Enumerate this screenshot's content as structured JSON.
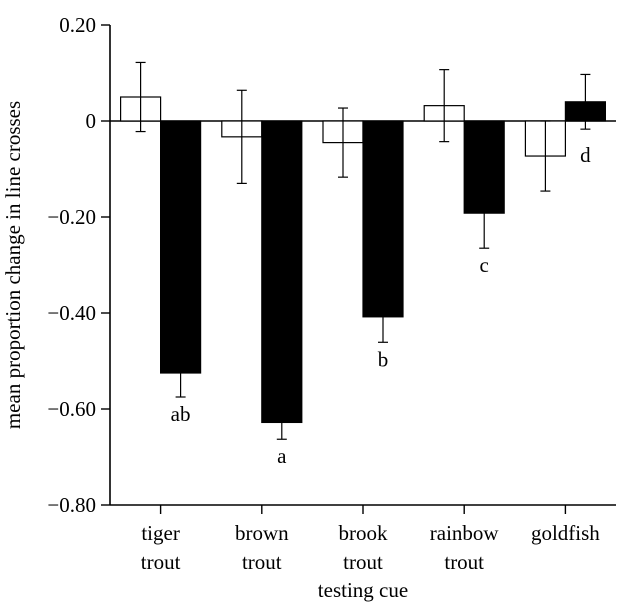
{
  "chart_data": {
    "type": "bar",
    "xlabel": "testing cue",
    "ylabel": "mean proportion change in line crosses",
    "ylim": [
      -0.8,
      0.2
    ],
    "yticks": [
      0.2,
      0,
      -0.2,
      -0.4,
      -0.6,
      -0.8
    ],
    "ytick_labels": [
      "0.20",
      "0",
      "−0.20",
      "−0.40",
      "−0.60",
      "−0.80"
    ],
    "grid": false,
    "categories": [
      [
        "tiger",
        "trout"
      ],
      [
        "brown",
        "trout"
      ],
      [
        "brook",
        "trout"
      ],
      [
        "rainbow",
        "trout"
      ],
      [
        "goldfish"
      ]
    ],
    "series": [
      {
        "fill": "#ffffff",
        "values": [
          0.05,
          -0.033,
          -0.045,
          0.032,
          -0.073
        ],
        "errors": [
          0.072,
          0.097,
          0.072,
          0.075,
          0.073
        ],
        "letters": [
          "",
          "",
          "",
          "",
          ""
        ]
      },
      {
        "fill": "#000000",
        "values": [
          -0.525,
          -0.628,
          -0.408,
          -0.192,
          0.04
        ],
        "errors": [
          0.05,
          0.035,
          0.053,
          0.073,
          0.057
        ],
        "letters": [
          "ab",
          "a",
          "b",
          "c",
          "d"
        ]
      }
    ]
  }
}
